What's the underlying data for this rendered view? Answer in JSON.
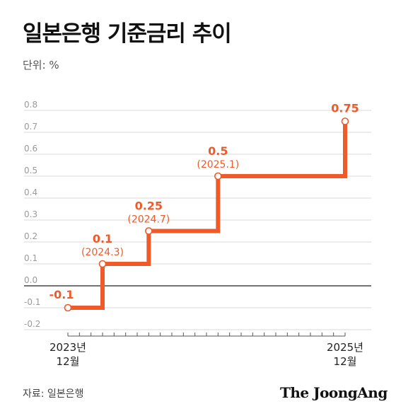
{
  "title": "일본은행 기준금리 추이",
  "unit": "단위: %",
  "source": "자료: 일본은행",
  "brand": "The JoongAng",
  "colors": {
    "accent": "#ef5a2a",
    "zero_line": "#222222",
    "grid": "#d9d9d9"
  },
  "chart_data": {
    "type": "line",
    "step": true,
    "title": "일본은행 기준금리 추이",
    "ylabel": "단위: %",
    "ylim": [
      -0.2,
      0.8
    ],
    "yticks": [
      "0.8",
      "0.7",
      "0.6",
      "0.5",
      "0.4",
      "0.3",
      "0.2",
      "0.1",
      "0.0",
      "-0.1",
      "-0.2"
    ],
    "ytick_values": [
      0.8,
      0.7,
      0.6,
      0.5,
      0.4,
      0.3,
      0.2,
      0.1,
      0.0,
      -0.1,
      -0.2
    ],
    "x_range": [
      "2023-12",
      "2025-12"
    ],
    "x_tick_labels": [
      {
        "line1": "2023년",
        "line2": "12월",
        "date": "2023-12"
      },
      {
        "line1": "2025년",
        "line2": "12월",
        "date": "2025-12"
      }
    ],
    "points": [
      {
        "date": "2023-12",
        "value": -0.1,
        "label": "-0.1",
        "sublabel": ""
      },
      {
        "date": "2024-03",
        "value": 0.1,
        "label": "0.1",
        "sublabel": "(2024.3)"
      },
      {
        "date": "2024-07",
        "value": 0.25,
        "label": "0.25",
        "sublabel": "(2024.7)"
      },
      {
        "date": "2025-01",
        "value": 0.5,
        "label": "0.5",
        "sublabel": "(2025.1)"
      },
      {
        "date": "2025-12",
        "value": 0.75,
        "label": "0.75",
        "sublabel": ""
      }
    ],
    "grid": true
  }
}
